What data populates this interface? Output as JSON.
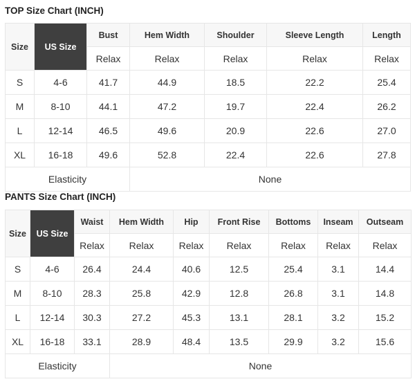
{
  "top": {
    "title": "TOP Size Chart (INCH)",
    "size_label": "Size",
    "us_size_label": "US Size",
    "columns": [
      "Bust",
      "Hem Width",
      "Shoulder",
      "Sleeve Length",
      "Length"
    ],
    "sub_label": "Relax",
    "rows": [
      {
        "size": "S",
        "us": "4-6",
        "values": [
          "41.7",
          "44.9",
          "18.5",
          "22.2",
          "25.4"
        ]
      },
      {
        "size": "M",
        "us": "8-10",
        "values": [
          "44.1",
          "47.2",
          "19.7",
          "22.4",
          "26.2"
        ]
      },
      {
        "size": "L",
        "us": "12-14",
        "values": [
          "46.5",
          "49.6",
          "20.9",
          "22.6",
          "27.0"
        ]
      },
      {
        "size": "XL",
        "us": "16-18",
        "values": [
          "49.6",
          "52.8",
          "22.4",
          "22.6",
          "27.8"
        ]
      }
    ],
    "elasticity_label": "Elasticity",
    "elasticity_value": "None"
  },
  "pants": {
    "title": "PANTS Size Chart (INCH)",
    "size_label": "Size",
    "us_size_label": "US Size",
    "columns": [
      "Waist",
      "Hem Width",
      "Hip",
      "Front Rise",
      "Bottoms",
      "Inseam",
      "Outseam"
    ],
    "sub_label": "Relax",
    "rows": [
      {
        "size": "S",
        "us": "4-6",
        "values": [
          "26.4",
          "24.4",
          "40.6",
          "12.5",
          "25.4",
          "3.1",
          "14.4"
        ]
      },
      {
        "size": "M",
        "us": "8-10",
        "values": [
          "28.3",
          "25.8",
          "42.9",
          "12.8",
          "26.8",
          "3.1",
          "14.8"
        ]
      },
      {
        "size": "L",
        "us": "12-14",
        "values": [
          "30.3",
          "27.2",
          "45.3",
          "13.1",
          "28.1",
          "3.2",
          "15.2"
        ]
      },
      {
        "size": "XL",
        "us": "16-18",
        "values": [
          "33.1",
          "28.9",
          "48.4",
          "13.5",
          "29.9",
          "3.2",
          "15.6"
        ]
      }
    ],
    "elasticity_label": "Elasticity",
    "elasticity_value": "None"
  }
}
